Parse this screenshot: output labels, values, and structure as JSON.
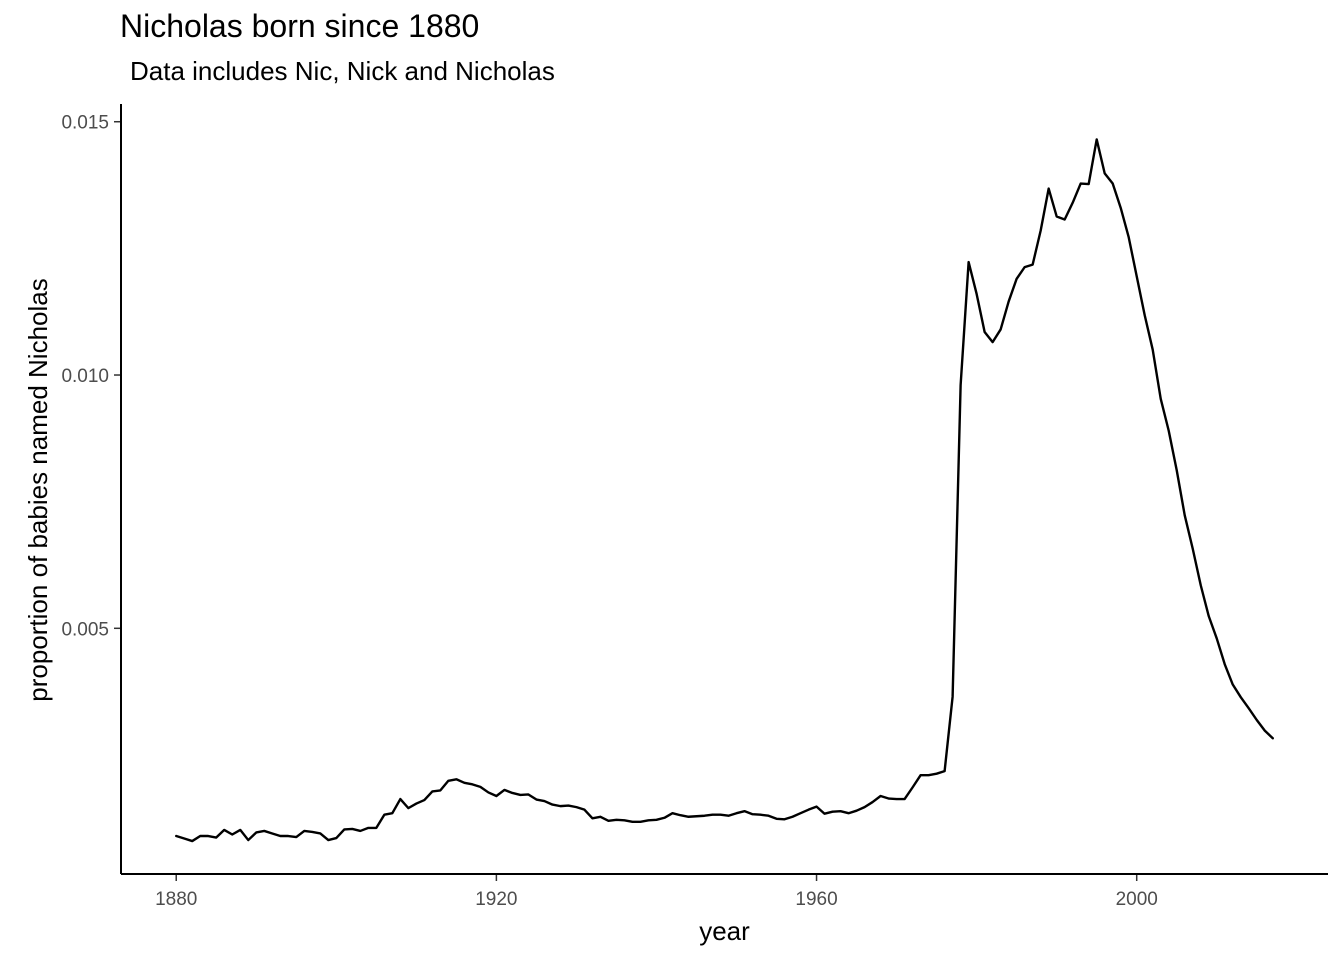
{
  "chart_data": {
    "type": "line",
    "title": "Nicholas born since 1880",
    "subtitle": "Data includes Nic, Nick and Nicholas",
    "xlabel": "year",
    "ylabel": "proportion of babies named Nicholas",
    "xlim": [
      1873.1,
      2023.9
    ],
    "ylim": [
      0.00015,
      0.01535
    ],
    "xticks": [
      1880,
      1920,
      1960,
      2000
    ],
    "xtick_labels": [
      "1880",
      "1920",
      "1960",
      "2000"
    ],
    "yticks": [
      0.005,
      0.01,
      0.015
    ],
    "ytick_labels": [
      "0.005",
      "0.010",
      "0.015"
    ],
    "grid": false,
    "line_color": "#000000",
    "series": [
      {
        "x": [
          1880,
          1881,
          1882,
          1883,
          1884,
          1885,
          1886,
          1887,
          1888,
          1889,
          1890,
          1891,
          1892,
          1893,
          1894,
          1895,
          1896,
          1897,
          1898,
          1899,
          1900,
          1901,
          1902,
          1903,
          1904,
          1905,
          1906,
          1907,
          1908,
          1909,
          1910,
          1911,
          1912,
          1913,
          1914,
          1915,
          1916,
          1917,
          1918,
          1919,
          1920,
          1921,
          1922,
          1923,
          1924,
          1925,
          1926,
          1927,
          1928,
          1929,
          1930,
          1931,
          1932,
          1933,
          1934,
          1935,
          1936,
          1937,
          1938,
          1939,
          1940,
          1941,
          1942,
          1943,
          1944,
          1945,
          1946,
          1947,
          1948,
          1949,
          1950,
          1951,
          1952,
          1953,
          1954,
          1955,
          1956,
          1957,
          1958,
          1959,
          1960,
          1961,
          1962,
          1963,
          1964,
          1965,
          1966,
          1967,
          1968,
          1969,
          1970,
          1971,
          1972,
          1973,
          1974,
          1975,
          1976,
          1977,
          1978,
          1979,
          1980,
          1981,
          1982,
          1983,
          1984,
          1985,
          1986,
          1987,
          1988,
          1989,
          1990,
          1991,
          1992,
          1993,
          1994,
          1995,
          1996,
          1997,
          1998,
          1999,
          2000,
          2001,
          2002,
          2003,
          2004,
          2005,
          2006,
          2007,
          2008,
          2009,
          2010,
          2011,
          2012,
          2013,
          2014,
          2015,
          2016,
          2017
        ],
        "values": [
          0.0009,
          0.00085,
          0.0008,
          0.0009,
          0.0009,
          0.00087,
          0.00102,
          0.00093,
          0.00102,
          0.00082,
          0.00097,
          0.001,
          0.00095,
          0.0009,
          0.0009,
          0.00088,
          0.001,
          0.00098,
          0.00095,
          0.00082,
          0.00086,
          0.00103,
          0.00104,
          0.001,
          0.00106,
          0.00106,
          0.00132,
          0.00135,
          0.00163,
          0.00145,
          0.00154,
          0.00161,
          0.00178,
          0.0018,
          0.00199,
          0.00202,
          0.00195,
          0.00192,
          0.00187,
          0.00176,
          0.00169,
          0.00181,
          0.00175,
          0.00171,
          0.00172,
          0.00162,
          0.00159,
          0.00152,
          0.00149,
          0.0015,
          0.00147,
          0.00142,
          0.00125,
          0.00128,
          0.0012,
          0.00122,
          0.00121,
          0.00118,
          0.00118,
          0.00121,
          0.00122,
          0.00126,
          0.00135,
          0.00131,
          0.00128,
          0.00129,
          0.0013,
          0.00132,
          0.00132,
          0.0013,
          0.00135,
          0.00139,
          0.00133,
          0.00132,
          0.0013,
          0.00124,
          0.00123,
          0.00128,
          0.00135,
          0.00142,
          0.00148,
          0.00134,
          0.00138,
          0.00139,
          0.00135,
          0.0014,
          0.00147,
          0.00157,
          0.00169,
          0.00164,
          0.00163,
          0.00163,
          0.00186,
          0.0021,
          0.0021,
          0.00213,
          0.00218,
          0.00365,
          0.0098,
          0.01223,
          0.0116,
          0.01085,
          0.01065,
          0.0109,
          0.01145,
          0.0119,
          0.01213,
          0.01218,
          0.01285,
          0.01368,
          0.01313,
          0.01307,
          0.0134,
          0.01378,
          0.01377,
          0.01465,
          0.01398,
          0.01378,
          0.0133,
          0.01272,
          0.01195,
          0.01118,
          0.0105,
          0.00953,
          0.0089,
          0.00812,
          0.00723,
          0.00657,
          0.00585,
          0.00524,
          0.0048,
          0.00429,
          0.00389,
          0.00364,
          0.00342,
          0.00319,
          0.00298,
          0.00283
        ]
      }
    ]
  }
}
